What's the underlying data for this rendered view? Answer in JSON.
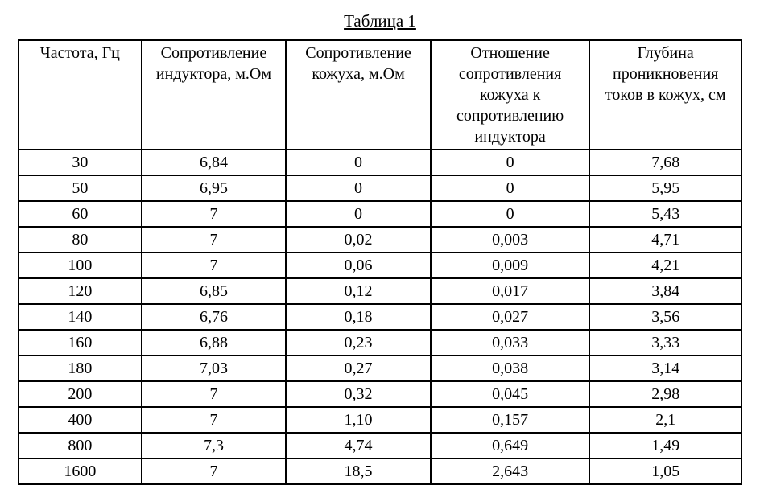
{
  "table": {
    "caption": "Таблица 1",
    "columns": [
      "Частота, Гц",
      "Сопротивление индуктора, м.Ом",
      "Сопротивление кожуха, м.Ом",
      "Отношение сопротивления кожуха к сопротивлению индуктора",
      "Глубина проникновения токов в кожух, см"
    ],
    "rows": [
      [
        "30",
        "6,84",
        "0",
        "0",
        "7,68"
      ],
      [
        "50",
        "6,95",
        "0",
        "0",
        "5,95"
      ],
      [
        "60",
        "7",
        "0",
        "0",
        "5,43"
      ],
      [
        "80",
        "7",
        "0,02",
        "0,003",
        "4,71"
      ],
      [
        "100",
        "7",
        "0,06",
        "0,009",
        "4,21"
      ],
      [
        "120",
        "6,85",
        "0,12",
        "0,017",
        "3,84"
      ],
      [
        "140",
        "6,76",
        "0,18",
        "0,027",
        "3,56"
      ],
      [
        "160",
        "6,88",
        "0,23",
        "0,033",
        "3,33"
      ],
      [
        "180",
        "7,03",
        "0,27",
        "0,038",
        "3,14"
      ],
      [
        "200",
        "7",
        "0,32",
        "0,045",
        "2,98"
      ],
      [
        "400",
        "7",
        "1,10",
        "0,157",
        "2,1"
      ],
      [
        "800",
        "7,3",
        "4,74",
        "0,649",
        "1,49"
      ],
      [
        "1600",
        "7",
        "18,5",
        "2,643",
        "1,05"
      ]
    ],
    "style": {
      "border_color": "#000000",
      "background_color": "#ffffff",
      "text_color": "#000000",
      "font_family": "Times New Roman",
      "title_fontsize": 21,
      "cell_fontsize": 20,
      "column_widths_pct": [
        17,
        20,
        20,
        22,
        21
      ]
    }
  }
}
